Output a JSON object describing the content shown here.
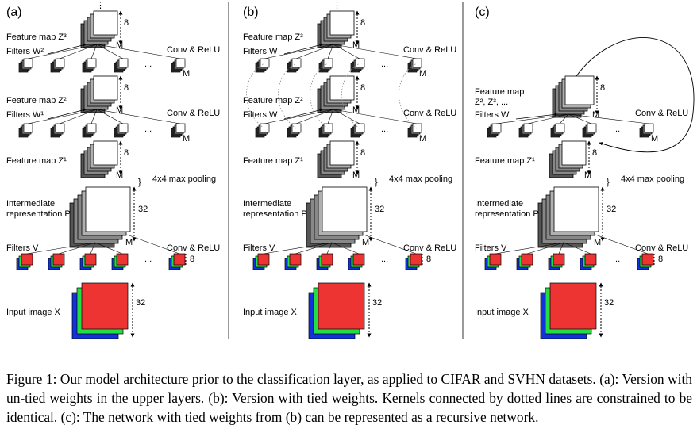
{
  "figure": {
    "panels": [
      {
        "label": "(a)",
        "feature_map_z3": "Feature map Z³",
        "filters_z3": "Filters W²",
        "feature_map_z2": "Feature map Z²",
        "filters_z2": "Filters W¹",
        "conv_relu": "Conv & ReLU",
        "feature_map_z1": "Feature map Z¹",
        "pooling": "4x4 max pooling",
        "intermediate_line1": "Intermediate",
        "intermediate_line2": "representation P",
        "filters_v": "Filters V",
        "input_image": "Input image X",
        "dim_8": "8",
        "dim_32": "32",
        "dim_m": "M",
        "ellipsis": "...",
        "vdots": "⋮"
      },
      {
        "label": "(b)",
        "feature_map_z3": "Feature map Z³",
        "filters_z3": "Filters W",
        "feature_map_z2": "Feature map Z²",
        "filters_z2": "Filters W",
        "conv_relu": "Conv & ReLU",
        "feature_map_z1": "Feature map Z¹",
        "pooling": "4x4 max pooling",
        "intermediate_line1": "Intermediate",
        "intermediate_line2": "representation P",
        "filters_v": "Filters V",
        "input_image": "Input image X",
        "dim_8": "8",
        "dim_32": "32",
        "dim_m": "M",
        "ellipsis": "...",
        "vdots": "⋮"
      },
      {
        "label": "(c)",
        "feature_map_line1": "Feature map",
        "feature_map_line2": "Z², Z³, ...",
        "filters_w": "Filters W",
        "conv_relu": "Conv & ReLU",
        "feature_map_z1": "Feature map Z¹",
        "pooling": "4x4 max pooling",
        "intermediate_line1": "Intermediate",
        "intermediate_line2": "representation P",
        "filters_v": "Filters V",
        "input_image": "Input image X",
        "dim_8": "8",
        "dim_32": "32",
        "dim_m": "M",
        "ellipsis": "..."
      }
    ],
    "colors": {
      "map_dark": "#555555",
      "map_mid": "#888888",
      "map_light": "#b0b0b0",
      "map_front": "#ffffff",
      "input_red": "#ee3333",
      "input_green": "#22dd44",
      "input_blue": "#1133dd"
    }
  },
  "caption": {
    "text": "Figure 1: Our model architecture prior to the classification layer, as applied to CIFAR and SVHN datasets. (a): Version with un-tied weights in the upper layers. (b): Version with tied weights. Kernels connected by dotted lines are constrained to be identical. (c): The network with tied weights from (b) can be represented as a recursive network."
  }
}
